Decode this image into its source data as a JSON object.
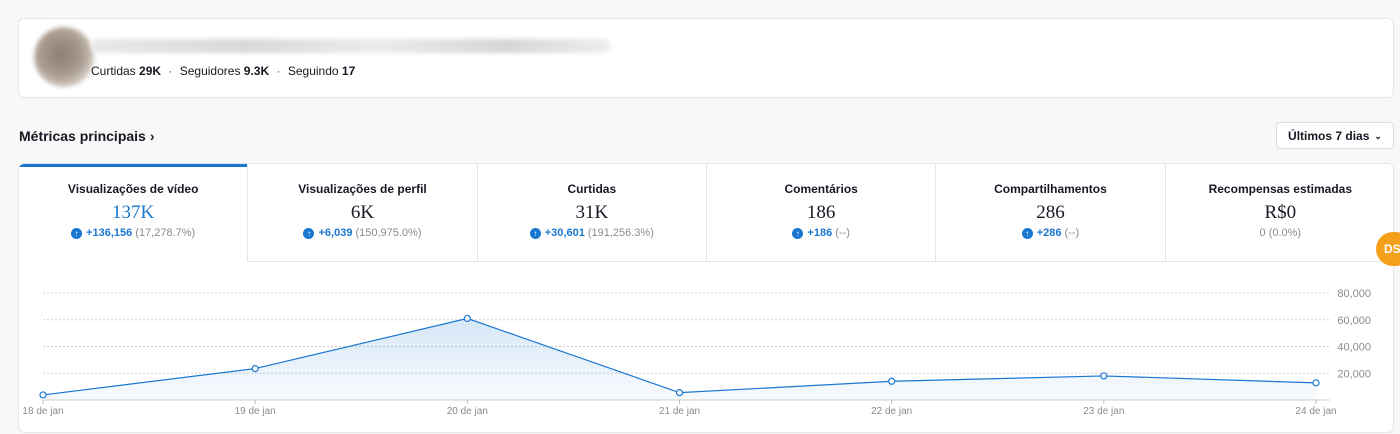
{
  "profile": {
    "stats": [
      {
        "label": "Curtidas",
        "value": "29K"
      },
      {
        "label": "Seguidores",
        "value": "9.3K"
      },
      {
        "label": "Seguindo",
        "value": "17"
      }
    ],
    "separator": "·"
  },
  "metrics": {
    "title": "Métricas principais",
    "title_icon": "chevron-right-icon",
    "range_label": "Últimos 7 dias",
    "range_icon": "chevron-down-icon",
    "tabs": [
      {
        "label": "Visualizações de vídeo",
        "value": "137K",
        "delta": "+136,156",
        "pct": "(17,278.7%)",
        "active": true
      },
      {
        "label": "Visualizações de perfil",
        "value": "6K",
        "delta": "+6,039",
        "pct": "(150,975.0%)"
      },
      {
        "label": "Curtidas",
        "value": "31K",
        "delta": "+30,601",
        "pct": "(191,256.3%)"
      },
      {
        "label": "Comentários",
        "value": "186",
        "delta": "+186",
        "pct": "(--)"
      },
      {
        "label": "Compartilhamentos",
        "value": "286",
        "delta": "+286",
        "pct": "(--)"
      },
      {
        "label": "Recompensas estimadas",
        "value": "R$0",
        "plain": "0 (0.0%)"
      }
    ],
    "accent_color": "#1a77d0"
  },
  "chart_data": {
    "type": "area",
    "x": [
      "18 de jan",
      "19 de jan",
      "20 de jan",
      "21 de jan",
      "22 de jan",
      "23 de jan",
      "24 de jan"
    ],
    "series": [
      {
        "values": [
          3800,
          23500,
          61000,
          5500,
          14000,
          18000,
          12800
        ]
      }
    ],
    "yticks": [
      "20,000",
      "40,000",
      "60,000",
      "80,000"
    ],
    "ylim": [
      0,
      80000
    ],
    "grid": true,
    "color": "#1a77d0"
  },
  "floating_badge": {
    "text": "DS",
    "color": "#f5a01a"
  }
}
